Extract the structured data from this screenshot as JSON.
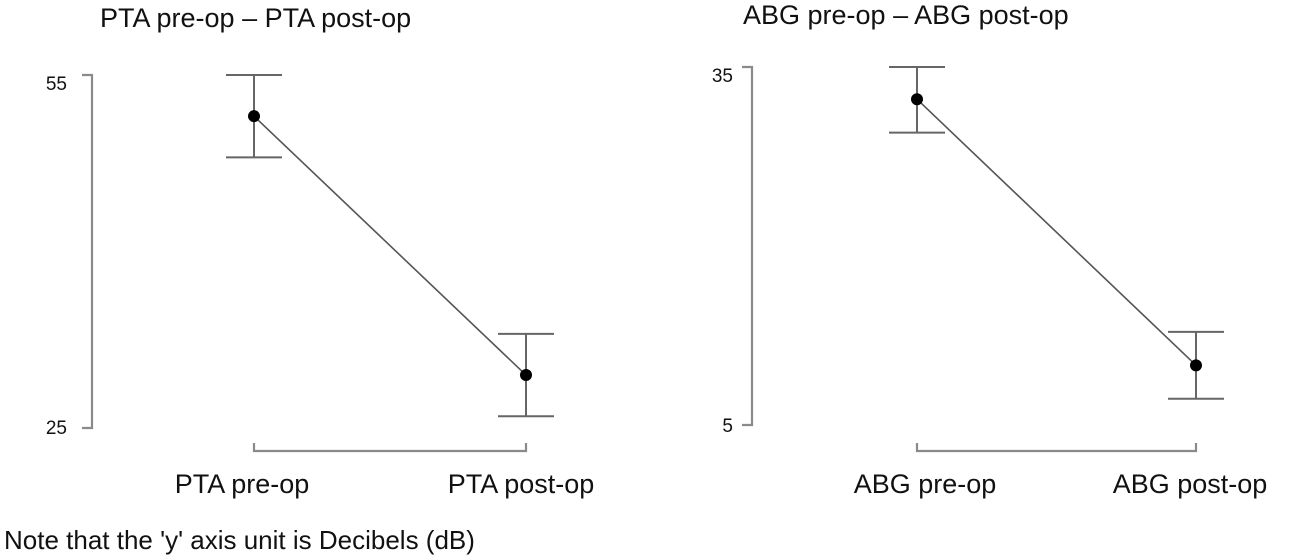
{
  "chart_data": [
    {
      "type": "line",
      "title": "PTA pre-op – PTA post-op",
      "categories": [
        "PTA pre-op",
        "PTA post-op"
      ],
      "y_ticks": [
        "55",
        "25"
      ],
      "ylim": [
        25,
        55
      ],
      "values": [
        51.5,
        29.5
      ],
      "error_low": [
        48,
        26
      ],
      "error_high": [
        55,
        33
      ],
      "grid": false,
      "legend": "none"
    },
    {
      "type": "line",
      "title": "ABG pre-op – ABG post-op",
      "categories": [
        "ABG pre-op",
        "ABG post-op"
      ],
      "y_ticks": [
        "35",
        "5"
      ],
      "ylim": [
        5,
        35
      ],
      "values": [
        32.3,
        10
      ],
      "error_low": [
        29.5,
        7.2
      ],
      "error_high": [
        35,
        12.8
      ],
      "grid": false,
      "legend": "none"
    }
  ],
  "note": "Note that the 'y' axis unit is Decibels (dB)"
}
